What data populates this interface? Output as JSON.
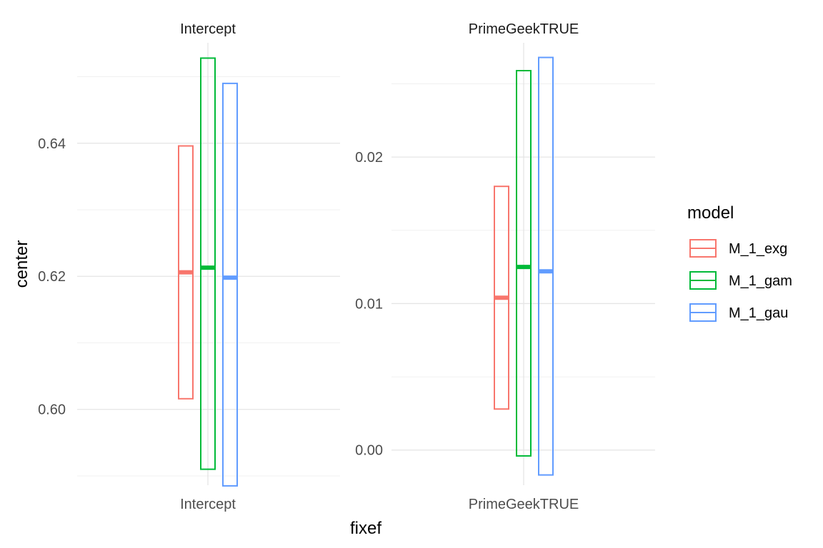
{
  "chart_data": {
    "type": "crossbar",
    "xlabel": "fixef",
    "ylabel": "center",
    "legend": {
      "title": "model",
      "position": "right"
    },
    "series": [
      {
        "name": "M_1_exg",
        "color": "#F8766D"
      },
      {
        "name": "M_1_gam",
        "color": "#00BA38"
      },
      {
        "name": "M_1_gau",
        "color": "#619CFF"
      }
    ],
    "facets": [
      {
        "strip": "Intercept",
        "category": "Intercept",
        "ylim": [
          0.5886,
          0.6551
        ],
        "y_ticks": [
          0.6,
          0.62,
          0.64
        ],
        "y_tick_labels": [
          "0.60",
          "0.62",
          "0.64"
        ],
        "bars": [
          {
            "model": "M_1_exg",
            "center": 0.6206,
            "lower": 0.6016,
            "upper": 0.6396
          },
          {
            "model": "M_1_gam",
            "center": 0.6213,
            "lower": 0.591,
            "upper": 0.6528
          },
          {
            "model": "M_1_gau",
            "center": 0.6198,
            "lower": 0.5885,
            "upper": 0.649
          }
        ]
      },
      {
        "strip": "PrimeGeekTRUE",
        "category": "PrimeGeekTRUE",
        "ylim": [
          -0.0024,
          0.0278
        ],
        "y_ticks": [
          0.0,
          0.01,
          0.02
        ],
        "y_tick_labels": [
          "0.00",
          "0.01",
          "0.02"
        ],
        "bars": [
          {
            "model": "M_1_exg",
            "center": 0.0104,
            "lower": 0.0028,
            "upper": 0.018
          },
          {
            "model": "M_1_gam",
            "center": 0.0125,
            "lower": -0.0004,
            "upper": 0.0259
          },
          {
            "model": "M_1_gau",
            "center": 0.0122,
            "lower": -0.0017,
            "upper": 0.0268
          }
        ]
      }
    ]
  }
}
